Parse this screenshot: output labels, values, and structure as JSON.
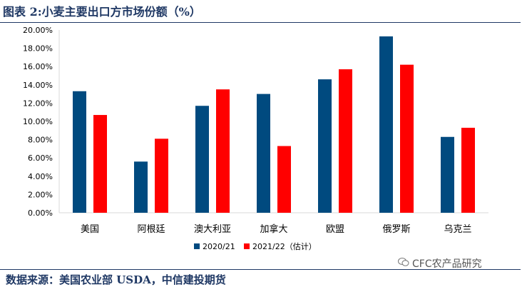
{
  "header": {
    "title": "图表 2:小麦主要出口方市场份额（%）"
  },
  "footer": {
    "source": "数据来源：美国农业部 USDA，中信建投期货"
  },
  "watermark": {
    "text": "CFC农产品研究"
  },
  "colors": {
    "series_2020": "#004a7f",
    "series_2021": "#ff0000",
    "accent": "#1f3864"
  },
  "chart_data": {
    "type": "bar",
    "title": "",
    "xlabel": "",
    "ylabel": "",
    "categories": [
      "美国",
      "阿根廷",
      "澳大利亚",
      "加拿大",
      "欧盟",
      "俄罗斯",
      "乌克兰"
    ],
    "series": [
      {
        "name": "2020/21",
        "values": [
          13.3,
          5.6,
          11.7,
          13.0,
          14.6,
          19.3,
          8.3
        ]
      },
      {
        "name": "2021/22（估计）",
        "values": [
          10.7,
          8.1,
          13.5,
          7.3,
          15.7,
          16.2,
          9.3
        ]
      }
    ],
    "yticks": [
      "0.00%",
      "2.00%",
      "4.00%",
      "6.00%",
      "8.00%",
      "10.00%",
      "12.00%",
      "14.00%",
      "16.00%",
      "18.00%",
      "20.00%"
    ],
    "ylim": [
      0,
      20
    ],
    "grid": false,
    "legend": "bottom-center"
  }
}
